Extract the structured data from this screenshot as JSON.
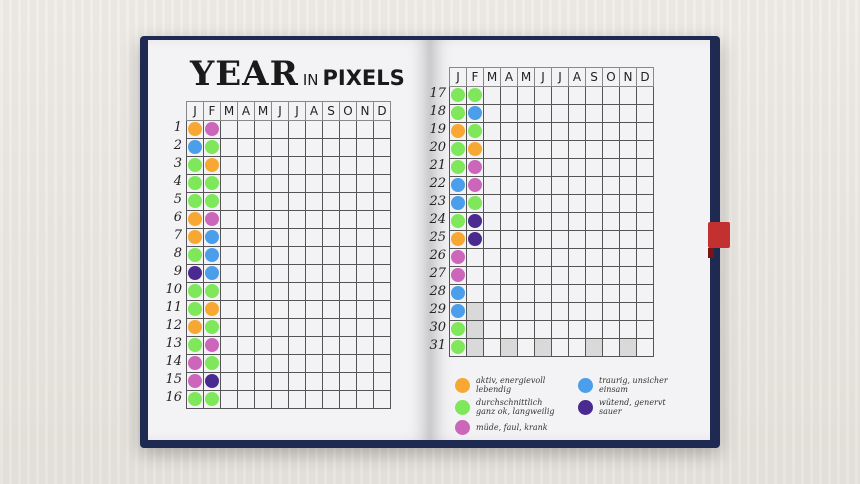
{
  "title": {
    "year": "YEAR",
    "in": "IN",
    "pixels": "PIXELS"
  },
  "months": [
    "J",
    "F",
    "M",
    "A",
    "M",
    "J",
    "J",
    "A",
    "S",
    "O",
    "N",
    "D"
  ],
  "colors": {
    "orange": "#f7a832",
    "blue": "#4a9eea",
    "green": "#7ee85a",
    "pink": "#cc66bb",
    "purple": "#4a2a8f"
  },
  "left_days": [
    {
      "day": "1",
      "jan": "orange",
      "feb": "pink"
    },
    {
      "day": "2",
      "jan": "blue",
      "feb": "green"
    },
    {
      "day": "3",
      "jan": "green",
      "feb": "orange"
    },
    {
      "day": "4",
      "jan": "green",
      "feb": "green"
    },
    {
      "day": "5",
      "jan": "green",
      "feb": "green"
    },
    {
      "day": "6",
      "jan": "orange",
      "feb": "pink"
    },
    {
      "day": "7",
      "jan": "orange",
      "feb": "blue"
    },
    {
      "day": "8",
      "jan": "green",
      "feb": "blue"
    },
    {
      "day": "9",
      "jan": "purple",
      "feb": "blue"
    },
    {
      "day": "10",
      "jan": "green",
      "feb": "green"
    },
    {
      "day": "11",
      "jan": "green",
      "feb": "orange"
    },
    {
      "day": "12",
      "jan": "orange",
      "feb": "green"
    },
    {
      "day": "13",
      "jan": "green",
      "feb": "pink"
    },
    {
      "day": "14",
      "jan": "pink",
      "feb": "green"
    },
    {
      "day": "15",
      "jan": "pink",
      "feb": "purple"
    },
    {
      "day": "16",
      "jan": "green",
      "feb": "green"
    }
  ],
  "right_days": [
    {
      "day": "17",
      "jan": "green",
      "feb": "green"
    },
    {
      "day": "18",
      "jan": "green",
      "feb": "blue"
    },
    {
      "day": "19",
      "jan": "orange",
      "feb": "green"
    },
    {
      "day": "20",
      "jan": "green",
      "feb": "orange"
    },
    {
      "day": "21",
      "jan": "green",
      "feb": "pink"
    },
    {
      "day": "22",
      "jan": "blue",
      "feb": "pink"
    },
    {
      "day": "23",
      "jan": "blue",
      "feb": "green"
    },
    {
      "day": "24",
      "jan": "green",
      "feb": "purple"
    },
    {
      "day": "25",
      "jan": "orange",
      "feb": "purple"
    },
    {
      "day": "26",
      "jan": "pink",
      "feb": ""
    },
    {
      "day": "27",
      "jan": "pink",
      "feb": ""
    },
    {
      "day": "28",
      "jan": "blue",
      "feb": ""
    },
    {
      "day": "29",
      "jan": "blue",
      "feb": ""
    },
    {
      "day": "30",
      "jan": "green",
      "feb": ""
    },
    {
      "day": "31",
      "jan": "green",
      "feb": ""
    }
  ],
  "legend": [
    {
      "color": "orange",
      "text": "aktiv, energievoll lebendig"
    },
    {
      "color": "green",
      "text": "durchschnittlich ganz ok, langweilig"
    },
    {
      "color": "pink",
      "text": "müde, faul, krank"
    },
    {
      "color": "blue",
      "text": "traurig, unsicher einsam"
    },
    {
      "color": "purple",
      "text": "wütend, genervt sauer"
    }
  ]
}
